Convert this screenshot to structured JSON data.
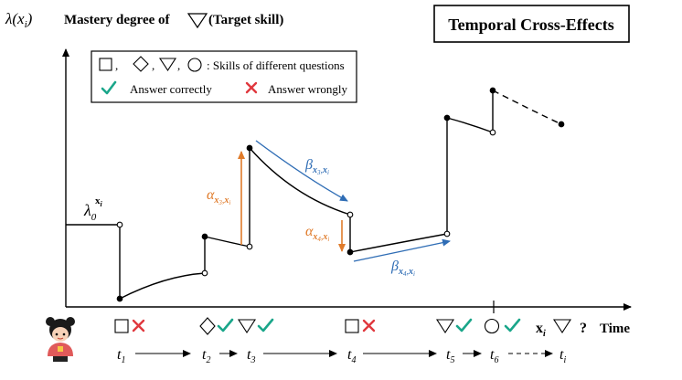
{
  "title": "Temporal Cross-Effects",
  "y_axis_label": {
    "symbol": "λ(x",
    "sub": "i",
    "close": ")",
    "text_bold": "Mastery degree of",
    "target_symbol": "▽",
    "target_text": "(Target skill)"
  },
  "legend": {
    "shapes_sep": ",",
    "shapes_text": ": Skills of different questions",
    "correct_text": "Answer correctly",
    "wrong_text": "Answer wrongly"
  },
  "annotations": {
    "lambda0": {
      "base": "λ",
      "sub": "0",
      "sup": "x",
      "sup_sub": "i"
    },
    "alpha3": {
      "base": "α",
      "sub1": "x",
      "sub1_sub": "3",
      "sep": ",",
      "sub2": "x",
      "sub2_sub": "i"
    },
    "beta3": {
      "base": "β",
      "sub1": "x",
      "sub1_sub": "3",
      "sep": ",",
      "sub2": "x",
      "sub2_sub": "i"
    },
    "alpha4": {
      "base": "α",
      "sub1": "x",
      "sub1_sub": "4",
      "sep": ",",
      "sub2": "x",
      "sub2_sub": "i"
    },
    "beta4": {
      "base": "β",
      "sub1": "x",
      "sub1_sub": "4",
      "sep": ",",
      "sub2": "x",
      "sub2_sub": "i"
    }
  },
  "timeline": {
    "ticks": [
      {
        "t": "t",
        "sub": "1"
      },
      {
        "t": "t",
        "sub": "2"
      },
      {
        "t": "t",
        "sub": "3"
      },
      {
        "t": "t",
        "sub": "4"
      },
      {
        "t": "t",
        "sub": "5"
      },
      {
        "t": "t",
        "sub": "6"
      },
      {
        "t": "t",
        "sub": "i"
      }
    ],
    "query_label": "x",
    "query_sub": "i",
    "query_mark": "?",
    "time_label": "Time"
  },
  "colors": {
    "orange": "#e07b2a",
    "blue": "#2f6db5",
    "green": "#1aa68a",
    "red": "#e0383e"
  },
  "icons": [
    "square-skill-icon",
    "diamond-skill-icon",
    "triangle-skill-icon",
    "circle-skill-icon",
    "check-icon",
    "cross-icon",
    "student-avatar-icon"
  ]
}
